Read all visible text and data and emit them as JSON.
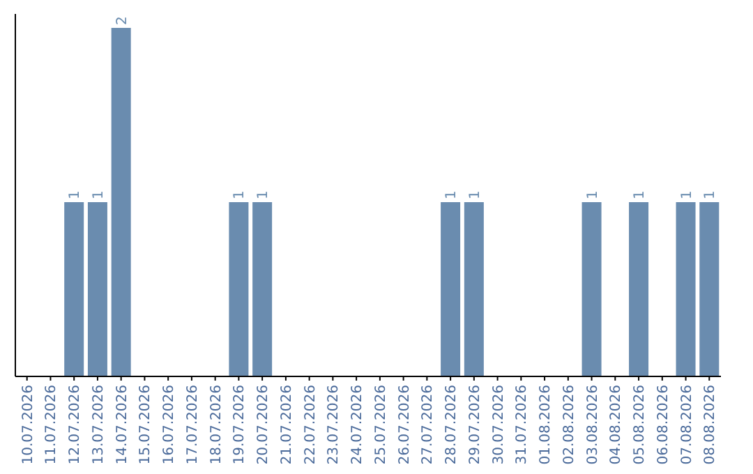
{
  "chart_data": {
    "type": "bar",
    "categories": [
      "10.07.2026",
      "11.07.2026",
      "12.07.2026",
      "13.07.2026",
      "14.07.2026",
      "15.07.2026",
      "16.07.2026",
      "17.07.2026",
      "18.07.2026",
      "19.07.2026",
      "20.07.2026",
      "21.07.2026",
      "22.07.2026",
      "23.07.2026",
      "24.07.2026",
      "25.07.2026",
      "26.07.2026",
      "27.07.2026",
      "28.07.2026",
      "29.07.2026",
      "30.07.2026",
      "31.07.2026",
      "01.08.2026",
      "02.08.2026",
      "03.08.2026",
      "04.08.2026",
      "05.08.2026",
      "06.08.2026",
      "07.08.2026",
      "08.08.2026"
    ],
    "values": [
      0,
      0,
      1,
      1,
      2,
      0,
      0,
      0,
      0,
      1,
      1,
      0,
      0,
      0,
      0,
      0,
      0,
      0,
      1,
      1,
      0,
      0,
      0,
      0,
      1,
      0,
      1,
      0,
      1,
      1
    ],
    "value_labels": [
      null,
      null,
      "1",
      "1",
      "2",
      null,
      null,
      null,
      null,
      "1",
      "1",
      null,
      null,
      null,
      null,
      null,
      null,
      null,
      "1",
      "1",
      null,
      null,
      null,
      null,
      "1",
      null,
      "1",
      null,
      "1",
      "1"
    ],
    "color": "#6a8caf"
  }
}
